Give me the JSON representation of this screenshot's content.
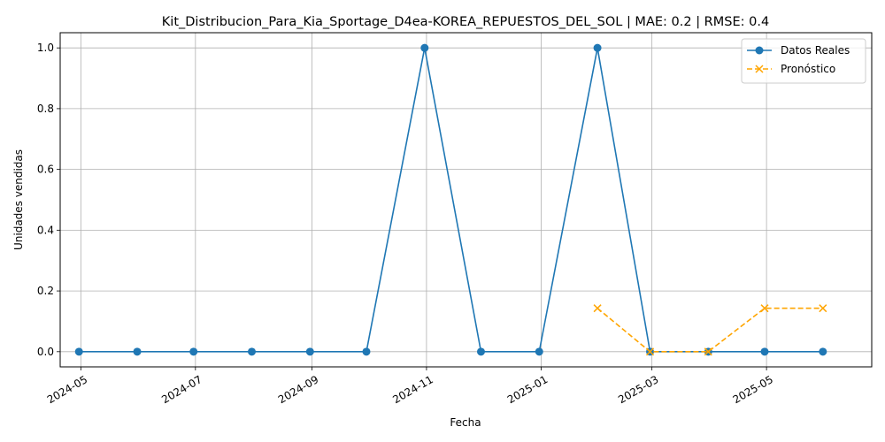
{
  "chart_data": {
    "type": "line",
    "title": "Kit_Distribucion_Para_Kia_Sportage_D4ea-KOREA_REPUESTOS_DEL_SOL | MAE: 0.2 | RMSE: 0.4",
    "xlabel": "Fecha",
    "ylabel": "Unidades vendidas",
    "ylim": [
      -0.05,
      1.05
    ],
    "yticks": [
      0.0,
      0.2,
      0.4,
      0.6,
      0.8,
      1.0
    ],
    "ytick_labels": [
      "0.0",
      "0.2",
      "0.4",
      "0.6",
      "0.8",
      "1.0"
    ],
    "xlim": [
      "2024-04-20",
      "2025-06-26"
    ],
    "xticks": [
      "2024-05-01",
      "2024-07-01",
      "2024-09-01",
      "2024-11-01",
      "2025-01-01",
      "2025-03-01",
      "2025-05-01"
    ],
    "xtick_labels": [
      "2024-05",
      "2024-07",
      "2024-09",
      "2024-11",
      "2025-01",
      "2025-03",
      "2025-05"
    ],
    "grid": true,
    "legend_position": "top-right",
    "series": [
      {
        "name": "Datos Reales",
        "color": "#1f77b4",
        "linestyle": "solid",
        "marker": "circle",
        "x": [
          "2024-04-30",
          "2024-05-31",
          "2024-06-30",
          "2024-07-31",
          "2024-08-31",
          "2024-09-30",
          "2024-10-31",
          "2024-11-30",
          "2024-12-31",
          "2025-01-31",
          "2025-02-28",
          "2025-03-31",
          "2025-04-30",
          "2025-05-31"
        ],
        "y": [
          0,
          0,
          0,
          0,
          0,
          0,
          1,
          0,
          0,
          1,
          0,
          0,
          0,
          0
        ]
      },
      {
        "name": "Pronóstico",
        "color": "#ffa500",
        "linestyle": "dashed",
        "marker": "x",
        "x": [
          "2025-01-31",
          "2025-02-28",
          "2025-03-31",
          "2025-04-30",
          "2025-05-31"
        ],
        "y": [
          0.143,
          0.0,
          0.0,
          0.143,
          0.143
        ]
      }
    ]
  }
}
